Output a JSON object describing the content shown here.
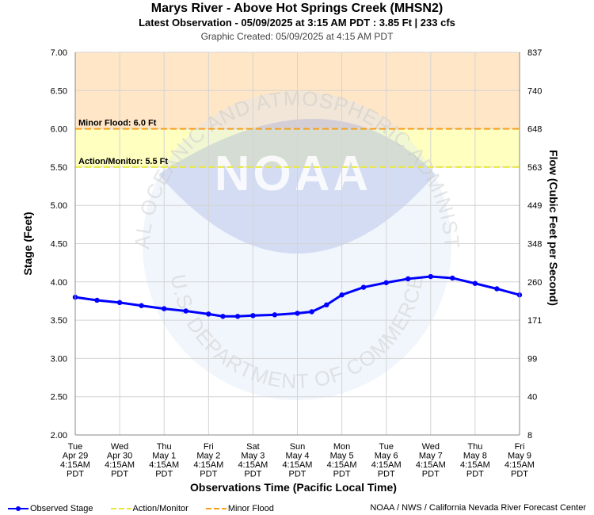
{
  "header": {
    "title": "Marys River - Above Hot Springs Creek (MHSN2)",
    "subtitle": "Latest Observation - 05/09/2025 at 3:15 AM PDT : 3.85 Ft | 233 cfs",
    "created": "Graphic Created: 05/09/2025 at 4:15 AM PDT"
  },
  "watermark": {
    "logo_text": "NOAA",
    "ring_top": "NATIONAL OCEANIC AND ATMOSPHERIC ADMINISTRATION",
    "ring_bottom": "U.S. DEPARTMENT OF COMMERCE"
  },
  "legend": [
    {
      "label": "Observed Stage",
      "color": "#0000ff",
      "style": "line-dot"
    },
    {
      "label": "Action/Monitor",
      "color": "#e8e83c",
      "style": "dash"
    },
    {
      "label": "Minor Flood",
      "color": "#f5a01e",
      "style": "dash"
    }
  ],
  "credit": "NOAA / NWS / California Nevada River Forecast Center",
  "chart_data": {
    "type": "line",
    "title": "Marys River - Above Hot Springs Creek (MHSN2)",
    "xlabel": "Observations Time (Pacific Local Time)",
    "ylabel": "Stage (Feet)",
    "y2label": "Flow (Cubic Feet per Second)",
    "ylim": [
      2.0,
      7.0
    ],
    "yticks": [
      "2.00",
      "2.50",
      "3.00",
      "3.50",
      "4.00",
      "4.50",
      "5.00",
      "5.50",
      "6.00",
      "6.50",
      "7.00"
    ],
    "y2ticks": [
      "8",
      "40",
      "99",
      "171",
      "260",
      "348",
      "449",
      "563",
      "648",
      "740",
      "837"
    ],
    "xticks": [
      [
        "Tue",
        "Apr 29",
        "4:15AM",
        "PDT"
      ],
      [
        "Wed",
        "Apr 30",
        "4:15AM",
        "PDT"
      ],
      [
        "Thu",
        "May 1",
        "4:15AM",
        "PDT"
      ],
      [
        "Fri",
        "May 2",
        "4:15AM",
        "PDT"
      ],
      [
        "Sat",
        "May 3",
        "4:15AM",
        "PDT"
      ],
      [
        "Sun",
        "May 4",
        "4:15AM",
        "PDT"
      ],
      [
        "Mon",
        "May 5",
        "4:15AM",
        "PDT"
      ],
      [
        "Tue",
        "May 6",
        "4:15AM",
        "PDT"
      ],
      [
        "Wed",
        "May 7",
        "4:15AM",
        "PDT"
      ],
      [
        "Thu",
        "May 8",
        "4:15AM",
        "PDT"
      ],
      [
        "Fri",
        "May 9",
        "4:15AM",
        "PDT"
      ]
    ],
    "x_start": "2025-04-29 04:15",
    "x_end": "2025-05-09 04:15",
    "grid": true,
    "thresholds": [
      {
        "name": "Action/Monitor",
        "label": "Action/Monitor: 5.5 Ft",
        "value": 5.5,
        "color": "#e8e83c"
      },
      {
        "name": "Minor Flood",
        "label": "Minor Flood: 6.0 Ft",
        "value": 6.0,
        "color": "#f5a01e"
      }
    ],
    "zones": [
      {
        "from": 5.5,
        "to": 6.0,
        "color": "#ffffc0"
      },
      {
        "from": 6.0,
        "to": 7.0,
        "color": "#ffe6c6"
      }
    ],
    "series": [
      {
        "name": "Observed Stage",
        "color": "#0000ff",
        "x": [
          "2025-04-29 04:15",
          "2025-04-29 16:00",
          "2025-04-30 04:15",
          "2025-04-30 16:00",
          "2025-05-01 04:15",
          "2025-05-01 16:00",
          "2025-05-02 04:15",
          "2025-05-02 12:00",
          "2025-05-02 20:00",
          "2025-05-03 04:15",
          "2025-05-03 16:00",
          "2025-05-04 04:15",
          "2025-05-04 12:00",
          "2025-05-04 20:00",
          "2025-05-05 04:15",
          "2025-05-05 16:00",
          "2025-05-06 04:15",
          "2025-05-06 16:00",
          "2025-05-07 04:15",
          "2025-05-07 16:00",
          "2025-05-08 04:15",
          "2025-05-08 16:00",
          "2025-05-09 04:15"
        ],
        "y": [
          3.8,
          3.76,
          3.73,
          3.69,
          3.65,
          3.62,
          3.58,
          3.55,
          3.55,
          3.56,
          3.57,
          3.59,
          3.61,
          3.7,
          3.83,
          3.93,
          3.99,
          4.04,
          4.07,
          4.05,
          3.98,
          3.91,
          3.83
        ]
      }
    ]
  }
}
